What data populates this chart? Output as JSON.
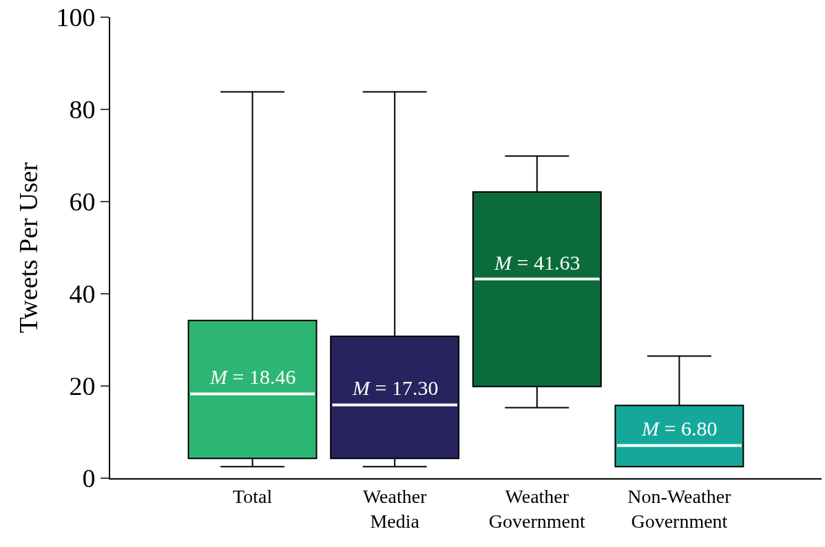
{
  "chart_data": {
    "type": "box",
    "ylabel": "Tweets Per User",
    "categories": [
      "Total",
      "Weather Media",
      "Weather Government",
      "Non-Weather Government"
    ],
    "colors": [
      "#2db673",
      "#27235e",
      "#0b6b3a",
      "#15a89a"
    ],
    "boxes": [
      {
        "low": 2.5,
        "q1": 4.3,
        "median": 18.3,
        "q3": 34.2,
        "high": 83.8
      },
      {
        "low": 2.5,
        "q1": 4.3,
        "median": 15.9,
        "q3": 30.8,
        "high": 83.8
      },
      {
        "low": 15.3,
        "q1": 19.9,
        "median": 43.2,
        "q3": 62.1,
        "high": 69.9
      },
      {
        "low": 2.5,
        "q1": 2.5,
        "median": 7.1,
        "q3": 15.8,
        "high": 26.5
      }
    ],
    "annotations": [
      {
        "text": "M = 18.46",
        "x": "Total",
        "y": 18.3
      },
      {
        "text": "M = 17.30",
        "x": "Weather Media",
        "y": 15.9
      },
      {
        "text": "M = 41.63",
        "x": "Weather Government",
        "y": 43.2
      },
      {
        "text": "M = 6.80",
        "x": "Non-Weather Government",
        "y": 7.1
      }
    ],
    "ylim": [
      0,
      100
    ],
    "yticks": [
      0,
      20,
      40,
      60,
      80,
      100
    ]
  }
}
